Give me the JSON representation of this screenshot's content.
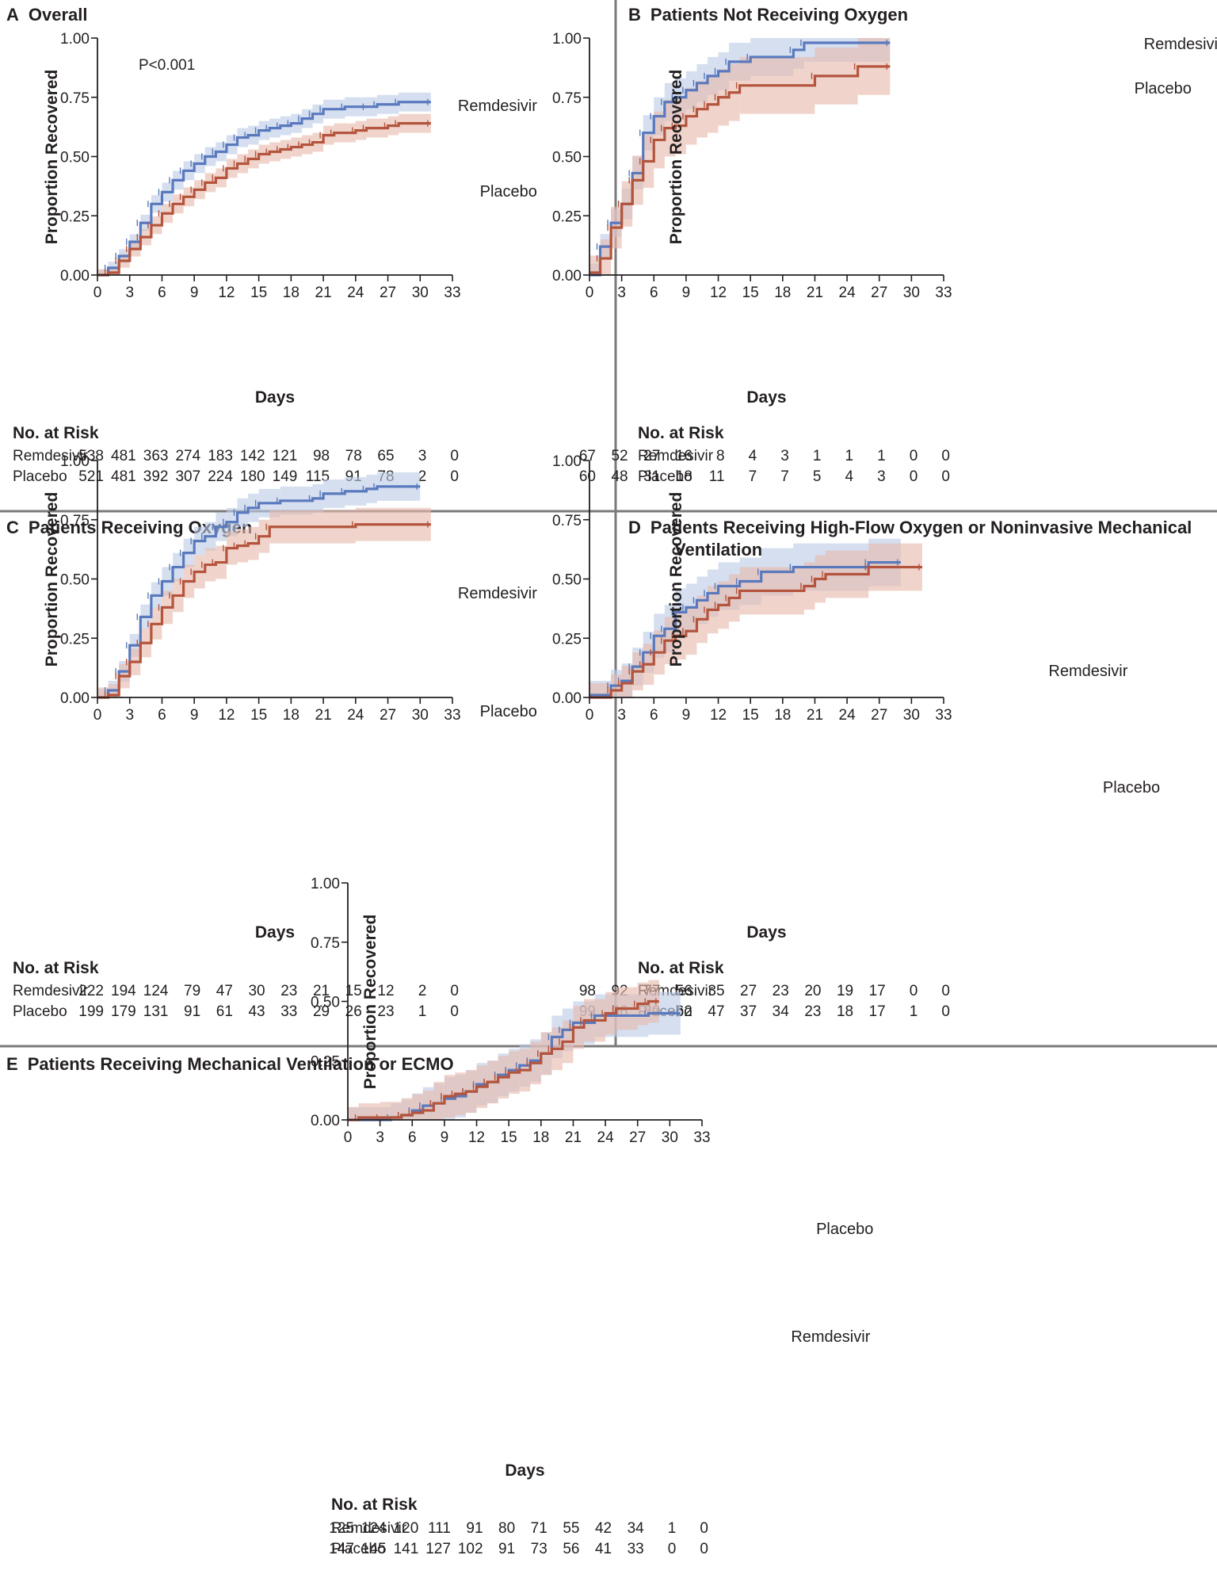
{
  "colors": {
    "remdesivir": "#5a79bd",
    "placebo": "#b4543c",
    "remdesivir_ci": "#bccbe6",
    "placebo_ci": "#e7b9ad",
    "text": "#231f20"
  },
  "chart_data": [
    {
      "id": "A",
      "type": "line",
      "panel_letter": "A",
      "title": "Overall",
      "annotation": "P<0.001",
      "xlabel": "Days",
      "ylabel": "Proportion Recovered",
      "xlim": [
        0,
        33
      ],
      "ylim": [
        0,
        1
      ],
      "x_ticks": [
        "0",
        "3",
        "6",
        "9",
        "12",
        "15",
        "18",
        "21",
        "24",
        "27",
        "30",
        "33"
      ],
      "y_ticks": [
        "0.00",
        "0.25",
        "0.50",
        "0.75",
        "1.00"
      ],
      "series": [
        {
          "name": "Remdesivir",
          "label_pos": "above",
          "x": [
            0,
            1,
            2,
            3,
            4,
            5,
            6,
            7,
            8,
            9,
            10,
            11,
            12,
            13,
            14,
            15,
            16,
            17,
            18,
            19,
            20,
            21,
            23,
            25,
            26,
            28,
            31
          ],
          "y": [
            0,
            0.03,
            0.08,
            0.14,
            0.22,
            0.3,
            0.35,
            0.4,
            0.44,
            0.47,
            0.5,
            0.52,
            0.55,
            0.58,
            0.59,
            0.61,
            0.62,
            0.63,
            0.64,
            0.66,
            0.68,
            0.7,
            0.71,
            0.71,
            0.72,
            0.73,
            0.73
          ],
          "ci_width": 0.04
        },
        {
          "name": "Placebo",
          "label_pos": "below",
          "x": [
            0,
            1,
            2,
            3,
            4,
            5,
            6,
            7,
            8,
            9,
            10,
            11,
            12,
            13,
            14,
            15,
            16,
            17,
            18,
            19,
            20,
            21,
            22,
            24,
            25,
            27,
            28,
            31
          ],
          "y": [
            0,
            0.01,
            0.06,
            0.11,
            0.16,
            0.21,
            0.26,
            0.3,
            0.33,
            0.36,
            0.39,
            0.41,
            0.45,
            0.47,
            0.49,
            0.51,
            0.52,
            0.53,
            0.54,
            0.55,
            0.56,
            0.59,
            0.6,
            0.61,
            0.62,
            0.63,
            0.64,
            0.64
          ],
          "ci_width": 0.04
        }
      ],
      "risk_table": {
        "header": "No. at Risk",
        "days": [
          0,
          3,
          6,
          9,
          12,
          15,
          18,
          21,
          24,
          27,
          30,
          33
        ],
        "rows": [
          {
            "name": "Remdesivir",
            "values": [
              538,
              481,
              363,
              274,
              183,
              142,
              121,
              98,
              78,
              65,
              3,
              0
            ]
          },
          {
            "name": "Placebo",
            "values": [
              521,
              481,
              392,
              307,
              224,
              180,
              149,
              115,
              91,
              78,
              2,
              0
            ]
          }
        ]
      }
    },
    {
      "id": "B",
      "type": "line",
      "panel_letter": "B",
      "title": "Patients Not Receiving Oxygen",
      "xlabel": "Days",
      "ylabel": "Proportion Recovered",
      "xlim": [
        0,
        33
      ],
      "ylim": [
        0,
        1
      ],
      "x_ticks": [
        "0",
        "3",
        "6",
        "9",
        "12",
        "15",
        "18",
        "21",
        "24",
        "27",
        "30",
        "33"
      ],
      "y_ticks": [
        "0.00",
        "0.25",
        "0.50",
        "0.75",
        "1.00"
      ],
      "series": [
        {
          "name": "Remdesivir",
          "label_pos": "above",
          "x": [
            0,
            1,
            2,
            3,
            4,
            5,
            6,
            7,
            8,
            9,
            10,
            11,
            12,
            13,
            15,
            19,
            20,
            28
          ],
          "y": [
            0,
            0.12,
            0.22,
            0.3,
            0.43,
            0.6,
            0.67,
            0.73,
            0.75,
            0.78,
            0.81,
            0.84,
            0.86,
            0.9,
            0.92,
            0.95,
            0.98,
            0.98
          ],
          "ci_width": 0.08
        },
        {
          "name": "Placebo",
          "label_pos": "right",
          "x": [
            0,
            1,
            2,
            3,
            4,
            5,
            6,
            7,
            8,
            9,
            10,
            11,
            12,
            13,
            14,
            21,
            25,
            28
          ],
          "y": [
            0.01,
            0.07,
            0.2,
            0.3,
            0.4,
            0.48,
            0.57,
            0.62,
            0.63,
            0.67,
            0.7,
            0.72,
            0.75,
            0.77,
            0.8,
            0.84,
            0.88,
            0.88
          ],
          "ci_width": 0.12
        }
      ],
      "risk_table": {
        "header": "No. at Risk",
        "days": [
          0,
          3,
          6,
          9,
          12,
          15,
          18,
          21,
          24,
          27,
          30,
          33
        ],
        "rows": [
          {
            "name": "Remdesivir",
            "values": [
              67,
              52,
              27,
              16,
              8,
              4,
              3,
              1,
              1,
              1,
              0,
              0
            ]
          },
          {
            "name": "Placebo",
            "values": [
              60,
              48,
              31,
              18,
              11,
              7,
              7,
              5,
              4,
              3,
              0,
              0
            ]
          }
        ]
      }
    },
    {
      "id": "C",
      "type": "line",
      "panel_letter": "C",
      "title": "Patients Receiving Oxygen",
      "xlabel": "Days",
      "ylabel": "Proportion Recovered",
      "xlim": [
        0,
        33
      ],
      "ylim": [
        0,
        1
      ],
      "x_ticks": [
        "0",
        "3",
        "6",
        "9",
        "12",
        "15",
        "18",
        "21",
        "24",
        "27",
        "30",
        "33"
      ],
      "y_ticks": [
        "0.00",
        "0.25",
        "0.50",
        "0.75",
        "1.00"
      ],
      "series": [
        {
          "name": "Remdesivir",
          "label_pos": "above",
          "x": [
            0,
            1,
            2,
            3,
            4,
            5,
            6,
            7,
            8,
            9,
            10,
            11,
            12,
            13,
            14,
            15,
            17,
            20,
            21,
            23,
            25,
            26,
            30
          ],
          "y": [
            0,
            0.03,
            0.11,
            0.22,
            0.34,
            0.43,
            0.49,
            0.55,
            0.61,
            0.66,
            0.68,
            0.72,
            0.74,
            0.78,
            0.8,
            0.82,
            0.83,
            0.84,
            0.86,
            0.87,
            0.88,
            0.89,
            0.89
          ],
          "ci_width": 0.06
        },
        {
          "name": "Placebo",
          "label_pos": "below",
          "x": [
            0,
            1,
            2,
            3,
            4,
            5,
            6,
            7,
            8,
            9,
            10,
            11,
            12,
            13,
            14,
            15,
            16,
            24,
            31
          ],
          "y": [
            0,
            0.01,
            0.09,
            0.15,
            0.23,
            0.31,
            0.38,
            0.43,
            0.49,
            0.53,
            0.56,
            0.57,
            0.63,
            0.64,
            0.65,
            0.68,
            0.72,
            0.73,
            0.73
          ],
          "ci_width": 0.07
        }
      ],
      "risk_table": {
        "header": "No. at Risk",
        "days": [
          0,
          3,
          6,
          9,
          12,
          15,
          18,
          21,
          24,
          27,
          30,
          33
        ],
        "rows": [
          {
            "name": "Remdesivir",
            "values": [
              222,
              194,
              124,
              79,
              47,
              30,
              23,
              21,
              15,
              12,
              2,
              0
            ]
          },
          {
            "name": "Placebo",
            "values": [
              199,
              179,
              131,
              91,
              61,
              43,
              33,
              29,
              26,
              23,
              1,
              0
            ]
          }
        ]
      }
    },
    {
      "id": "D",
      "type": "line",
      "panel_letter": "D",
      "title": "Patients Receiving High-Flow Oxygen or Noninvasive Mechanical",
      "title_line2": "Ventilation",
      "xlabel": "Days",
      "ylabel": "Proportion Recovered",
      "xlim": [
        0,
        33
      ],
      "ylim": [
        0,
        1
      ],
      "x_ticks": [
        "0",
        "3",
        "6",
        "9",
        "12",
        "15",
        "18",
        "21",
        "24",
        "27",
        "30",
        "33"
      ],
      "y_ticks": [
        "0.00",
        "0.25",
        "0.50",
        "0.75",
        "1.00"
      ],
      "series": [
        {
          "name": "Remdesivir",
          "label_pos": "above",
          "x": [
            0,
            2,
            3,
            4,
            5,
            6,
            7,
            8,
            9,
            10,
            11,
            12,
            14,
            16,
            19,
            26,
            29
          ],
          "y": [
            0.01,
            0.05,
            0.07,
            0.13,
            0.19,
            0.26,
            0.29,
            0.36,
            0.38,
            0.41,
            0.44,
            0.47,
            0.49,
            0.53,
            0.55,
            0.57,
            0.57
          ],
          "ci_width": 0.1
        },
        {
          "name": "Placebo",
          "label_pos": "below",
          "x": [
            0,
            2,
            3,
            4,
            5,
            6,
            7,
            8,
            9,
            10,
            11,
            12,
            13,
            14,
            20,
            21,
            22,
            26,
            31
          ],
          "y": [
            0,
            0.03,
            0.06,
            0.11,
            0.14,
            0.19,
            0.24,
            0.26,
            0.28,
            0.33,
            0.37,
            0.39,
            0.42,
            0.45,
            0.47,
            0.5,
            0.52,
            0.55,
            0.55
          ],
          "ci_width": 0.1
        }
      ],
      "risk_table": {
        "header": "No. at Risk",
        "days": [
          0,
          3,
          6,
          9,
          12,
          15,
          18,
          21,
          24,
          27,
          30,
          33
        ],
        "rows": [
          {
            "name": "Remdesivir",
            "values": [
              98,
              92,
              77,
              56,
              35,
              27,
              23,
              20,
              19,
              17,
              0,
              0
            ]
          },
          {
            "name": "Placebo",
            "values": [
              99,
              96,
              80,
              62,
              47,
              37,
              34,
              23,
              18,
              17,
              1,
              0
            ]
          }
        ]
      }
    },
    {
      "id": "E",
      "type": "line",
      "panel_letter": "E",
      "title": "Patients Receiving Mechanical Ventilation or ECMO",
      "xlabel": "Days",
      "ylabel": "Proportion Recovered",
      "xlim": [
        0,
        33
      ],
      "ylim": [
        0,
        1
      ],
      "x_ticks": [
        "0",
        "3",
        "6",
        "9",
        "12",
        "15",
        "18",
        "21",
        "24",
        "27",
        "30",
        "33"
      ],
      "y_ticks": [
        "0.00",
        "0.25",
        "0.50",
        "0.75",
        "1.00"
      ],
      "series": [
        {
          "name": "Remdesivir",
          "label_pos": "below",
          "x": [
            0,
            4,
            5,
            6,
            7,
            8,
            9,
            10,
            11,
            12,
            13,
            14,
            15,
            16,
            17,
            18,
            19,
            20,
            21,
            22,
            23,
            28,
            31
          ],
          "y": [
            0,
            0.01,
            0.02,
            0.04,
            0.06,
            0.07,
            0.09,
            0.1,
            0.12,
            0.15,
            0.16,
            0.19,
            0.21,
            0.23,
            0.25,
            0.28,
            0.35,
            0.38,
            0.41,
            0.41,
            0.44,
            0.45,
            0.45
          ],
          "ci_width": 0.09
        },
        {
          "name": "Placebo",
          "label_pos": "above",
          "x": [
            0,
            1,
            3,
            5,
            6,
            7,
            8,
            9,
            10,
            11,
            12,
            13,
            14,
            15,
            16,
            17,
            18,
            19,
            20,
            21,
            22,
            24,
            25,
            27,
            28,
            29
          ],
          "y": [
            0,
            0.01,
            0.01,
            0.02,
            0.03,
            0.04,
            0.07,
            0.1,
            0.11,
            0.12,
            0.14,
            0.16,
            0.18,
            0.2,
            0.21,
            0.24,
            0.28,
            0.3,
            0.33,
            0.39,
            0.42,
            0.45,
            0.47,
            0.49,
            0.5,
            0.5
          ],
          "ci_width": 0.09
        }
      ],
      "risk_table": {
        "header": "No. at Risk",
        "days": [
          0,
          3,
          6,
          9,
          12,
          15,
          18,
          21,
          24,
          27,
          30,
          33
        ],
        "rows": [
          {
            "name": "Remdesivir",
            "values": [
              125,
              124,
              120,
              111,
              91,
              80,
              71,
              55,
              42,
              34,
              1,
              0
            ]
          },
          {
            "name": "Placebo",
            "values": [
              147,
              145,
              141,
              127,
              102,
              91,
              73,
              56,
              41,
              33,
              0,
              0
            ]
          }
        ]
      }
    }
  ]
}
